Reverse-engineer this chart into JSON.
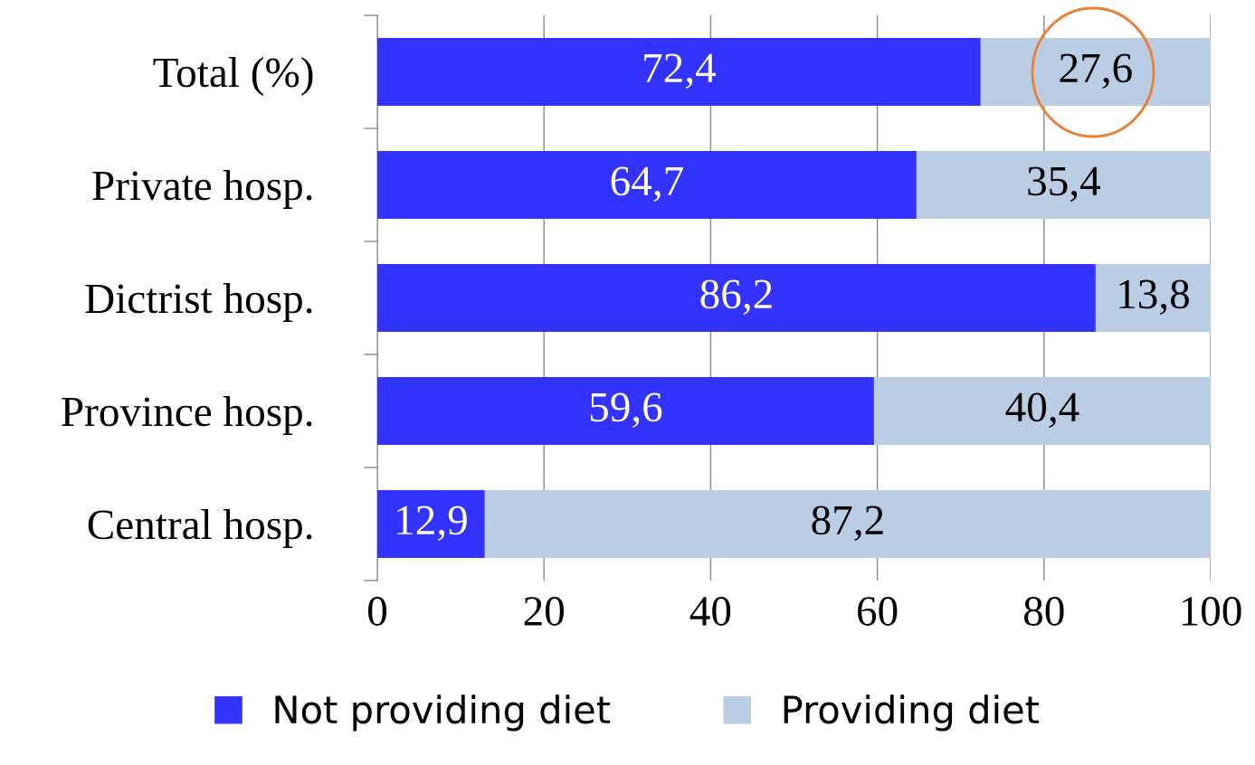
{
  "chart_data": {
    "type": "bar",
    "orientation": "horizontal",
    "stacked": true,
    "categories": [
      "Total (%)",
      "Private hosp.",
      "Dictrist hosp.",
      "Province hosp.",
      "Central hosp."
    ],
    "series": [
      {
        "name": "Not providing diet",
        "color": "#3333ff",
        "values": [
          72.4,
          64.7,
          86.2,
          59.6,
          12.9
        ],
        "value_labels": [
          "72,4",
          "64,7",
          "86,2",
          "59,6",
          "12,9"
        ]
      },
      {
        "name": "Providing diet",
        "color": "#b9cde5",
        "values": [
          27.6,
          35.4,
          13.8,
          40.4,
          87.2
        ],
        "value_labels": [
          "27,6",
          "35,4",
          "13,8",
          "40,4",
          "87,2"
        ]
      }
    ],
    "xlim": [
      0,
      100
    ],
    "xticks": [
      0,
      20,
      40,
      60,
      80,
      100
    ],
    "grid": "x",
    "legend": "bottom"
  }
}
